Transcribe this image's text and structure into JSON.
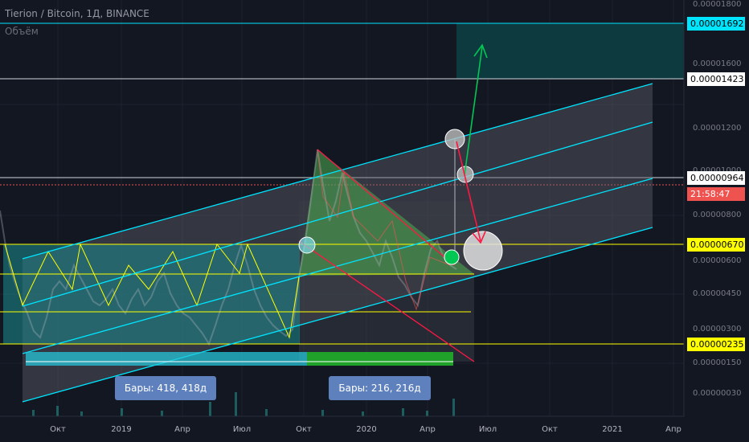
{
  "header": {
    "symbol_line": "Tierion / Bitcoin, 1Д, BINANCE",
    "volume_label": "Объём"
  },
  "price_axis": {
    "ticks": [
      "0.00001800",
      "0.00001600",
      "0.00001200",
      "0.00001000",
      "0.00000800",
      "0.00000600",
      "0.00000450",
      "0.00000300",
      "0.00000150",
      "0.00000030"
    ],
    "labels": [
      {
        "text": "0.00001692",
        "bg": "#00e5ff",
        "fg": "#000000"
      },
      {
        "text": "0.00001423",
        "bg": "#ffffff",
        "fg": "#000000"
      },
      {
        "text": "0.00000964",
        "bg": "#ffffff",
        "fg": "#000000"
      },
      {
        "text": "21:58:47",
        "bg": "#ef5350",
        "fg": "#ffffff"
      },
      {
        "text": "0.00000670",
        "bg": "#ffff00",
        "fg": "#000000"
      },
      {
        "text": "0.00000235",
        "bg": "#ffff00",
        "fg": "#000000"
      }
    ]
  },
  "time_axis": [
    "Окт",
    "2019",
    "Апр",
    "Июл",
    "Окт",
    "2020",
    "Апр",
    "Июл",
    "Окт",
    "2021",
    "Апр"
  ],
  "measurements": [
    {
      "text": "Бары: 418, 418д"
    },
    {
      "text": "Бары: 216, 216д"
    }
  ],
  "colors": {
    "background": "#131722",
    "channel": "#00e5ff",
    "level": "#ffff00",
    "triangle_fill": "#4caf50",
    "wedge_line": "#ff1744",
    "arrow_up": "#00c853",
    "arrow_down": "#ff1744"
  }
}
